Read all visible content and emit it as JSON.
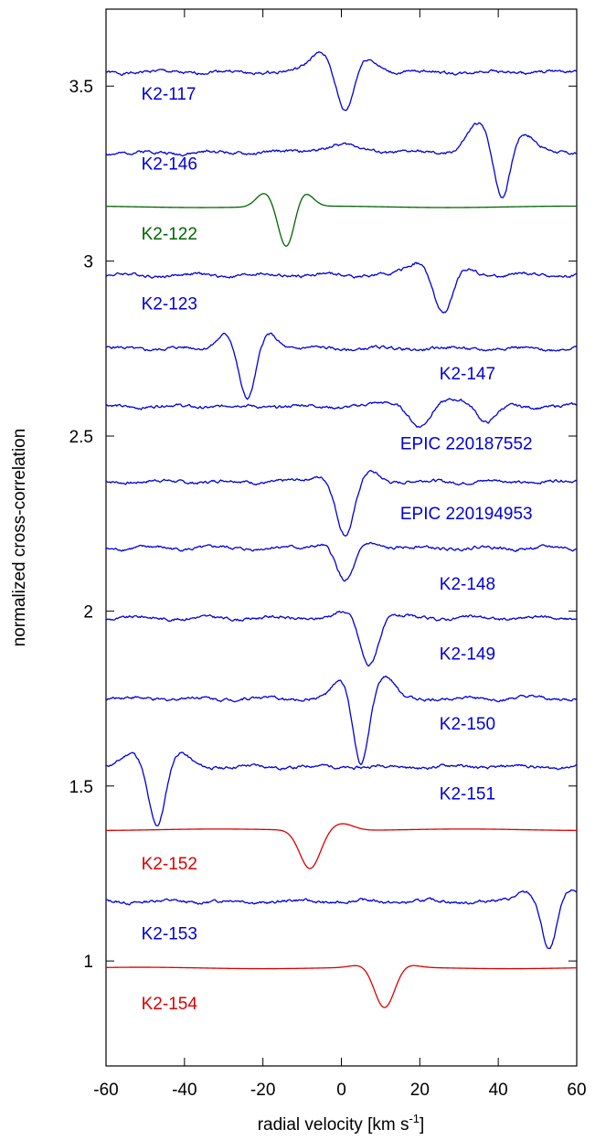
{
  "chart_data": {
    "type": "line",
    "xlabel": "radial velocity [km s",
    "xlabel_sup": "-1",
    "xlabel_end": "]",
    "ylabel": "normalized cross-correlation",
    "xlim": [
      -60,
      60
    ],
    "ylim": [
      0.7,
      3.72
    ],
    "x_ticks": [
      -60,
      -40,
      -20,
      0,
      20,
      40,
      60
    ],
    "y_ticks": [
      1,
      1.5,
      2,
      2.5,
      3,
      3.5
    ],
    "grid": false,
    "legend": "none",
    "series": [
      {
        "name": "K2-117",
        "color": "#0000dd",
        "baseline": 3.54,
        "dips": [
          {
            "v": 1,
            "depth": 0.13,
            "w": 2.2
          }
        ],
        "bumps": [
          [
            -5,
            0.06,
            3
          ],
          [
            6,
            0.04,
            3
          ]
        ],
        "label_v": -51,
        "label_y": 3.48
      },
      {
        "name": "K2-146",
        "color": "#0000dd",
        "baseline": 3.31,
        "dips": [
          {
            "v": 41,
            "depth": 0.15,
            "w": 2
          }
        ],
        "bumps": [
          [
            35,
            0.08,
            3
          ],
          [
            46,
            0.06,
            3
          ],
          [
            0,
            0.02,
            6
          ]
        ],
        "label_v": -51,
        "label_y": 3.28
      },
      {
        "name": "K2-122",
        "color": "#006400",
        "baseline": 3.155,
        "dips": [
          {
            "v": -14,
            "depth": 0.12,
            "w": 2
          }
        ],
        "bumps": [
          [
            -19.5,
            0.04,
            2.2
          ],
          [
            -9.5,
            0.04,
            2.2
          ]
        ],
        "label_v": -51,
        "label_y": 3.08
      },
      {
        "name": "K2-123",
        "color": "#0000dd",
        "baseline": 2.96,
        "dips": [
          {
            "v": 26,
            "depth": 0.12,
            "w": 2.4
          }
        ],
        "bumps": [
          [
            20,
            0.04,
            3
          ],
          [
            31,
            0.02,
            3
          ]
        ],
        "label_v": -51,
        "label_y": 2.88
      },
      {
        "name": "K2-147",
        "color": "#0000dd",
        "baseline": 2.75,
        "dips": [
          {
            "v": -24,
            "depth": 0.16,
            "w": 2.2
          }
        ],
        "bumps": [
          [
            -29,
            0.05,
            2.5
          ],
          [
            -19,
            0.05,
            2.5
          ]
        ],
        "label_v": 25,
        "label_y": 2.68
      },
      {
        "name": "EPIC 220187552",
        "color": "#0000dd",
        "baseline": 2.585,
        "dips": [
          {
            "v": 20,
            "depth": 0.06,
            "w": 2.5
          },
          {
            "v": 37,
            "depth": 0.05,
            "w": 2.3
          }
        ],
        "bumps": [
          [
            13,
            0.01,
            4
          ],
          [
            30,
            0.02,
            4
          ]
        ],
        "label_v": 15,
        "label_y": 2.48
      },
      {
        "name": "EPIC 220194953",
        "color": "#0000dd",
        "baseline": 2.37,
        "dips": [
          {
            "v": 1,
            "depth": 0.16,
            "w": 2.3
          }
        ],
        "bumps": [
          [
            -4,
            0.02,
            3
          ],
          [
            7,
            0.03,
            2.5
          ]
        ],
        "label_v": 15,
        "label_y": 2.28
      },
      {
        "name": "K2-148",
        "color": "#0000dd",
        "baseline": 2.18,
        "dips": [
          {
            "v": 1,
            "depth": 0.11,
            "w": 2.4
          }
        ],
        "bumps": [
          [
            -3,
            0.02,
            3
          ],
          [
            6,
            0.02,
            3
          ]
        ],
        "label_v": 25,
        "label_y": 2.08
      },
      {
        "name": "K2-149",
        "color": "#0000dd",
        "baseline": 1.98,
        "dips": [
          {
            "v": 7,
            "depth": 0.14,
            "w": 2.3
          }
        ],
        "bumps": [
          [
            2,
            0.02,
            3
          ],
          [
            11,
            0.01,
            3
          ]
        ],
        "label_v": 25,
        "label_y": 1.88
      },
      {
        "name": "K2-150",
        "color": "#0000dd",
        "baseline": 1.75,
        "dips": [
          {
            "v": 5,
            "depth": 0.19,
            "w": 1.9
          }
        ],
        "bumps": [
          [
            0,
            0.05,
            2.2
          ],
          [
            11,
            0.06,
            2.5
          ]
        ],
        "label_v": 25,
        "label_y": 1.68
      },
      {
        "name": "K2-151",
        "color": "#0000dd",
        "baseline": 1.555,
        "dips": [
          {
            "v": -47,
            "depth": 0.17,
            "w": 2.1
          }
        ],
        "bumps": [
          [
            -53,
            0.04,
            2.5
          ],
          [
            -41.5,
            0.04,
            2.5
          ]
        ],
        "label_v": 25,
        "label_y": 1.48
      },
      {
        "name": "K2-152",
        "color": "#dd0000",
        "baseline": 1.375,
        "dips": [
          {
            "v": -8,
            "depth": 0.11,
            "w": 2.6
          }
        ],
        "bumps": [
          [
            0,
            0.02,
            3
          ]
        ],
        "label_v": -51,
        "label_y": 1.28
      },
      {
        "name": "K2-153",
        "color": "#0000dd",
        "baseline": 1.17,
        "dips": [
          {
            "v": 53,
            "depth": 0.14,
            "w": 1.8
          }
        ],
        "bumps": [
          [
            47,
            0.03,
            2.3
          ],
          [
            59,
            0.03,
            2.3
          ]
        ],
        "label_v": -51,
        "label_y": 1.08
      },
      {
        "name": "K2-154",
        "color": "#dd0000",
        "baseline": 0.98,
        "dips": [
          {
            "v": 11,
            "depth": 0.12,
            "w": 2.6
          }
        ],
        "bumps": [
          [
            6,
            0.01,
            3
          ],
          [
            16,
            0.01,
            3
          ]
        ],
        "label_v": -51,
        "label_y": 0.88
      }
    ]
  }
}
